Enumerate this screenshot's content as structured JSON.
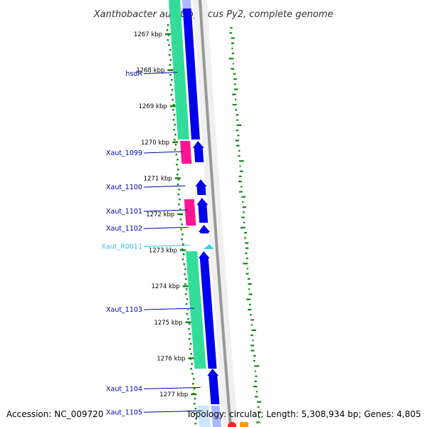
{
  "title": "Xanthobacter autotrophicus Py2, complete genome",
  "accession": "Accession: NC_009720",
  "topology": "Topology: circular; Length: 5,308,934 bp; Genes: 4,805",
  "colors": {
    "cds": "#0000ee",
    "cds_highlight": "#3399ff",
    "gene": "#33dd99",
    "pink": "#ff1493",
    "rna": "#33ccee",
    "backbone": "#999999",
    "gc_skew": "#118811",
    "label_gene": "#0000aa",
    "label_rna": "#33bbee"
  },
  "ticks": [
    {
      "label": "1267 kbp",
      "kbp": 1267
    },
    {
      "label": "1268 kbp",
      "kbp": 1268
    },
    {
      "label": "1269 kbp",
      "kbp": 1269
    },
    {
      "label": "1270 kbp",
      "kbp": 1270
    },
    {
      "label": "1271 kbp",
      "kbp": 1271
    },
    {
      "label": "1272 kbp",
      "kbp": 1272
    },
    {
      "label": "1273 kbp",
      "kbp": 1273
    },
    {
      "label": "1274 kbp",
      "kbp": 1274
    },
    {
      "label": "1275 kbp",
      "kbp": 1275
    },
    {
      "label": "1276 kbp",
      "kbp": 1276
    },
    {
      "label": "1277 kbp",
      "kbp": 1277
    }
  ],
  "genes": [
    {
      "label": "hsdR",
      "kbp": 1268.1,
      "type": "gene"
    },
    {
      "label": "Xaut_1099",
      "kbp": 1270.3,
      "type": "gene"
    },
    {
      "label": "Xaut_1100",
      "kbp": 1271.25,
      "type": "gene"
    },
    {
      "label": "Xaut_1101",
      "kbp": 1271.92,
      "type": "gene"
    },
    {
      "label": "Xaut_1102",
      "kbp": 1272.4,
      "type": "gene"
    },
    {
      "label": "Xaut_R0011",
      "kbp": 1272.9,
      "type": "rna"
    },
    {
      "label": "Xaut_1103",
      "kbp": 1274.65,
      "type": "gene"
    },
    {
      "label": "Xaut_1104",
      "kbp": 1276.85,
      "type": "gene"
    },
    {
      "label": "Xaut_1105",
      "kbp": 1277.5,
      "type": "gene"
    }
  ]
}
